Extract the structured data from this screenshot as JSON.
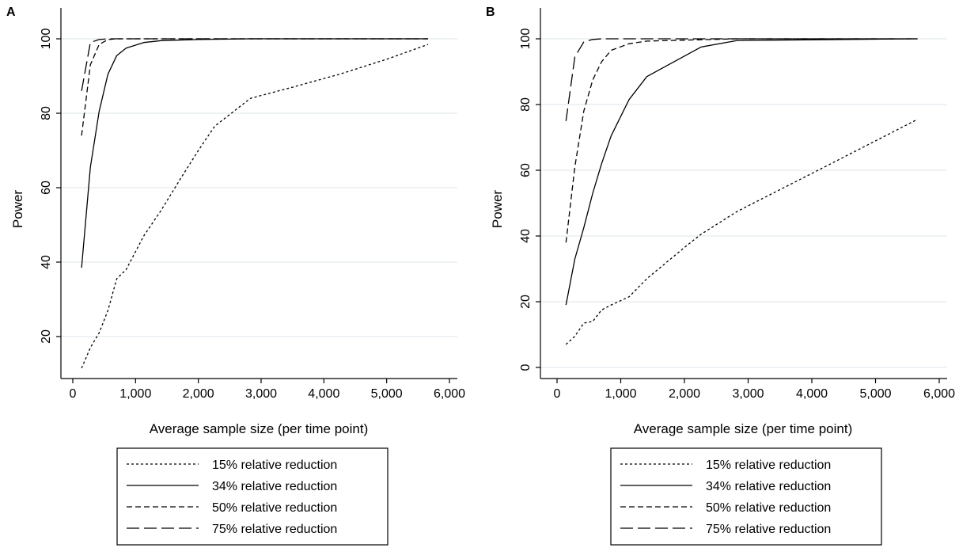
{
  "chart_data": [
    {
      "panel": "A",
      "type": "line",
      "xlabel": "Average sample size (per time point)",
      "ylabel": "Power",
      "xlim": [
        0,
        6000
      ],
      "ylim": [
        10,
        100
      ],
      "xticks": [
        0,
        1000,
        2000,
        3000,
        4000,
        5000,
        6000
      ],
      "xtick_labels": [
        "0",
        "1,000",
        "2,000",
        "3,000",
        "4,000",
        "5,000",
        "6,000"
      ],
      "yticks": [
        20,
        40,
        60,
        80,
        100
      ],
      "ytick_labels": [
        "20",
        "40",
        "60",
        "80",
        "100"
      ],
      "grid": true,
      "legend_position": "bottom",
      "series": [
        {
          "name": "15% relative reduction",
          "dash": "dotted",
          "x": [
            140,
            280,
            420,
            560,
            700,
            850,
            1130,
            1410,
            1700,
            2000,
            2260,
            2830,
            3500,
            4250,
            5000,
            5660
          ],
          "y": [
            11.5,
            17,
            21,
            27,
            35.5,
            38,
            47,
            54,
            62,
            70,
            76.5,
            84,
            87,
            90.5,
            94.5,
            98.5
          ]
        },
        {
          "name": "34% relative reduction",
          "dash": "solid",
          "x": [
            140,
            280,
            420,
            560,
            700,
            850,
            1130,
            1410,
            2000,
            2830,
            5660
          ],
          "y": [
            38.5,
            65.5,
            80.5,
            90.5,
            95.5,
            97.5,
            99,
            99.5,
            99.8,
            100,
            100
          ]
        },
        {
          "name": "50% relative reduction",
          "dash": "dashed",
          "x": [
            140,
            280,
            420,
            560,
            700,
            5660
          ],
          "y": [
            74,
            93,
            98.5,
            99.8,
            100,
            100
          ]
        },
        {
          "name": "75% relative reduction",
          "dash": "longdash",
          "x": [
            140,
            280,
            420,
            560,
            5660
          ],
          "y": [
            86,
            99,
            99.8,
            100,
            100
          ]
        }
      ]
    },
    {
      "panel": "B",
      "type": "line",
      "xlabel": "Average sample size (per time point)",
      "ylabel": "Power",
      "xlim": [
        0,
        6000
      ],
      "ylim": [
        0,
        100
      ],
      "xticks": [
        0,
        1000,
        2000,
        3000,
        4000,
        5000,
        6000
      ],
      "xtick_labels": [
        "0",
        "1,000",
        "2,000",
        "3,000",
        "4,000",
        "5,000",
        "6,000"
      ],
      "yticks": [
        0,
        20,
        40,
        60,
        80,
        100
      ],
      "ytick_labels": [
        "0",
        "20",
        "40",
        "60",
        "80",
        "100"
      ],
      "grid": true,
      "legend_position": "bottom",
      "series": [
        {
          "name": "15% relative reduction",
          "dash": "dotted",
          "x": [
            140,
            280,
            420,
            560,
            700,
            850,
            1130,
            1410,
            2000,
            2260,
            2830,
            4250,
            5660
          ],
          "y": [
            7,
            9.5,
            13.5,
            14,
            17.5,
            19,
            21.5,
            27,
            36.5,
            40.5,
            47.5,
            61.5,
            75.5
          ]
        },
        {
          "name": "34% relative reduction",
          "dash": "solid",
          "x": [
            140,
            280,
            420,
            560,
            700,
            850,
            1130,
            1410,
            2260,
            2830,
            5660
          ],
          "y": [
            19,
            33,
            42.5,
            53,
            62,
            70.5,
            81.5,
            88.5,
            97.5,
            99.5,
            100
          ]
        },
        {
          "name": "50% relative reduction",
          "dash": "dashed",
          "x": [
            140,
            280,
            420,
            560,
            700,
            850,
            1130,
            1410,
            2830,
            5660
          ],
          "y": [
            38,
            61,
            78,
            87.5,
            93,
            96.5,
            98.5,
            99.3,
            100,
            100
          ]
        },
        {
          "name": "75% relative reduction",
          "dash": "longdash",
          "x": [
            140,
            280,
            420,
            560,
            700,
            5660
          ],
          "y": [
            75,
            94.5,
            99,
            99.8,
            100,
            100
          ]
        }
      ]
    }
  ],
  "styles": {
    "line_color": "#000000",
    "grid_color": "#e4eaee",
    "dash_patterns": {
      "dotted": "3 3",
      "solid": "",
      "dashed": "7 4",
      "longdash": "16 6"
    }
  }
}
